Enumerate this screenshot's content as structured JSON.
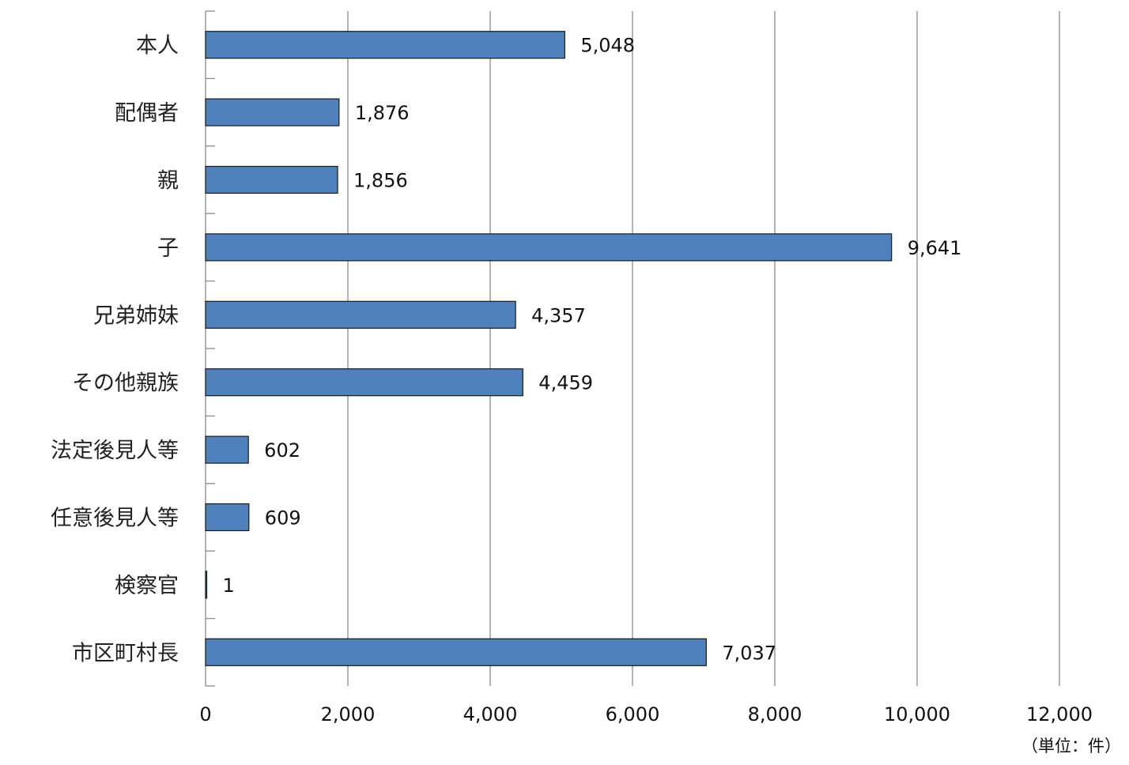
{
  "chart_data": {
    "type": "bar",
    "orientation": "horizontal",
    "title": "",
    "xlabel": "",
    "ylabel": "",
    "unit_note": "（単位：件）",
    "categories": [
      "本人",
      "配偶者",
      "親",
      "子",
      "兄弟姉妹",
      "その他親族",
      "法定後見人等",
      "任意後見人等",
      "検察官",
      "市区町村長"
    ],
    "values": [
      5048,
      1876,
      1856,
      9641,
      4357,
      4459,
      602,
      609,
      1,
      7037
    ],
    "value_labels": [
      "5,048",
      "1,876",
      "1,856",
      "9,641",
      "4,357",
      "4,459",
      "602",
      "609",
      "1",
      "7,037"
    ],
    "xlim": [
      0,
      12000
    ],
    "xticks": [
      0,
      2000,
      4000,
      6000,
      8000,
      10000,
      12000
    ],
    "xtick_labels": [
      "0",
      "2,000",
      "4,000",
      "6,000",
      "8,000",
      "10,000",
      "12,000"
    ],
    "grid": "vertical",
    "legend": "none",
    "bar_color": "#4f81bd"
  }
}
